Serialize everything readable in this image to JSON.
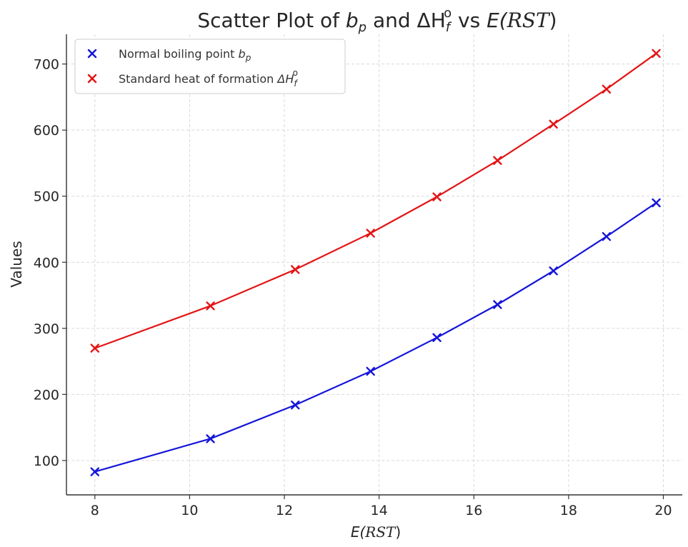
{
  "chart_data": {
    "type": "scatter",
    "title": {
      "prefix": "Scatter Plot of ",
      "v1": "b",
      "v1_sub": "p",
      "mid": " and ΔH",
      "v2_sub": "f",
      "v2_sup": "o",
      "suffix": " vs ",
      "e": "E(",
      "rst": "RST",
      "close": ")"
    },
    "xlabel": {
      "e": "E(",
      "rst": "RST",
      "close": ")"
    },
    "ylabel": "Values",
    "xlim": [
      7.4,
      20.4
    ],
    "ylim": [
      48,
      745
    ],
    "x_ticks": [
      8,
      10,
      12,
      14,
      16,
      18,
      20
    ],
    "y_ticks": [
      100,
      200,
      300,
      400,
      500,
      600,
      700
    ],
    "grid": true,
    "legend_position": "top-left",
    "marker": "x",
    "series": [
      {
        "name": "Normal boiling point b_p",
        "legend": {
          "text": "Normal boiling point ",
          "v": "b",
          "sub": "p"
        },
        "color": "#1515d9",
        "x": [
          8.0,
          10.44,
          12.23,
          13.82,
          15.22,
          16.5,
          17.68,
          18.8,
          19.85
        ],
        "y": [
          83,
          133,
          184,
          235,
          286,
          336,
          387,
          439,
          490
        ]
      },
      {
        "name": "Standard heat of formation ΔH_f^o",
        "legend": {
          "text": "Standard heat of formation ",
          "v": "ΔH",
          "sub": "f",
          "sup": "o"
        },
        "color": "#e31414",
        "x": [
          8.0,
          10.44,
          12.23,
          13.82,
          15.22,
          16.5,
          17.68,
          18.8,
          19.85
        ],
        "y": [
          270,
          334,
          389,
          444,
          499,
          554,
          609,
          662,
          716
        ]
      }
    ]
  }
}
